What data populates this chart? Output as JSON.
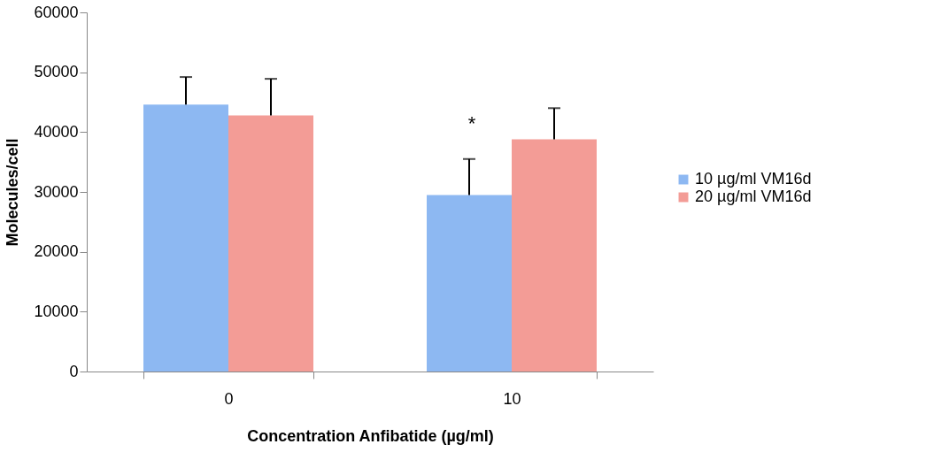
{
  "chart_data": {
    "type": "bar",
    "xlabel": "Concentration Anfibatide (µg/ml)",
    "ylabel": "Molecules/cell",
    "categories": [
      "0",
      "10"
    ],
    "series": [
      {
        "name": "10 µg/ml VM16d",
        "color": "#8db8f2",
        "values": [
          44600,
          29500
        ],
        "errors": [
          [
            44600,
            49200
          ],
          [
            29500,
            35500
          ]
        ]
      },
      {
        "name": "20 µg/ml VM16d",
        "color": "#f39c96",
        "values": [
          42800,
          38800
        ],
        "errors": [
          [
            42800,
            48900
          ],
          [
            38800,
            44000
          ]
        ]
      }
    ],
    "ylim": [
      0,
      60000
    ],
    "yticks": [
      0,
      10000,
      20000,
      30000,
      40000,
      50000,
      60000
    ],
    "annotations": [
      "*"
    ],
    "grid": false,
    "legend": "right"
  }
}
